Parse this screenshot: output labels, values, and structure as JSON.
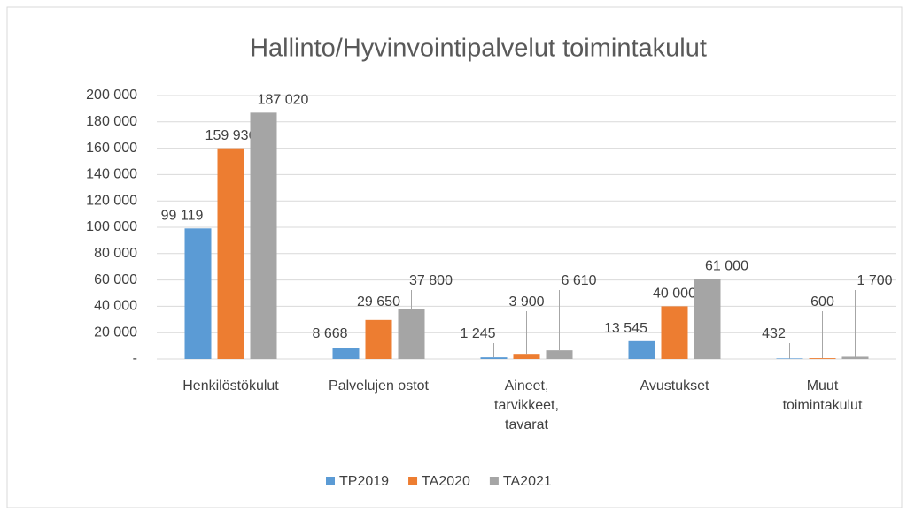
{
  "chart_data": {
    "type": "bar",
    "title": "Hallinto/Hyvinvointipalvelut toimintakulut",
    "categories": [
      "Henkilöstökulut",
      "Palvelujen ostot",
      "Aineet,\ntarvikkeet,\ntavarat",
      "Avustukset",
      "Muut\ntoimintakulut"
    ],
    "series": [
      {
        "name": "TP2019",
        "color": "#5b9bd5",
        "values": [
          99119,
          8668,
          1245,
          13545,
          432
        ],
        "value_labels": [
          "99 119",
          "8 668",
          "1 245",
          "13 545",
          "432"
        ]
      },
      {
        "name": "TA2020",
        "color": "#ed7d31",
        "values": [
          159936,
          29650,
          3900,
          40000,
          600
        ],
        "value_labels": [
          "159 936",
          "29 650",
          "3 900",
          "40 000",
          "600"
        ]
      },
      {
        "name": "TA2021",
        "color": "#a5a5a5",
        "values": [
          187020,
          37800,
          6610,
          61000,
          1700
        ],
        "value_labels": [
          "187 020",
          "37 800",
          "6 610",
          "61 000",
          "1 700"
        ]
      }
    ],
    "ylim": [
      0,
      200000
    ],
    "yticks": [
      {
        "value": 0,
        "label": "-"
      },
      {
        "value": 20000,
        "label": "20 000"
      },
      {
        "value": 40000,
        "label": "40 000"
      },
      {
        "value": 60000,
        "label": "60 000"
      },
      {
        "value": 80000,
        "label": "80 000"
      },
      {
        "value": 100000,
        "label": "100 000"
      },
      {
        "value": 120000,
        "label": "120 000"
      },
      {
        "value": 140000,
        "label": "140 000"
      },
      {
        "value": 160000,
        "label": "160 000"
      },
      {
        "value": 180000,
        "label": "180 000"
      },
      {
        "value": 200000,
        "label": "200 000"
      }
    ],
    "grid": true,
    "legend": "bottom"
  }
}
